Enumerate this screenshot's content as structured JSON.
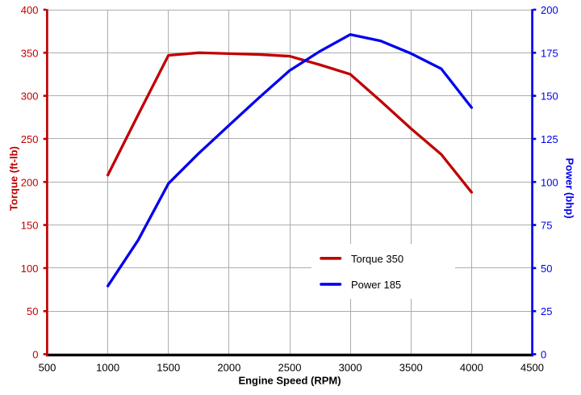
{
  "chart_data": {
    "type": "line",
    "title": "",
    "xlabel": "Engine Speed (RPM)",
    "ylabel_left": "Torque (ft-lb)",
    "ylabel_right": "Power (bhp)",
    "x": [
      1000,
      1250,
      1500,
      1750,
      2000,
      2250,
      2500,
      2750,
      3000,
      3250,
      3500,
      3750,
      4000
    ],
    "series": [
      {
        "name": "Torque 350",
        "axis": "left",
        "color": "#c00000",
        "values": [
          208,
          278,
          347,
          350,
          349,
          348,
          346,
          336,
          325,
          294,
          262,
          232,
          188
        ]
      },
      {
        "name": "Power 185",
        "axis": "right",
        "color": "#0000ee",
        "values": [
          39.6,
          66.2,
          99.1,
          116.6,
          132.9,
          149.1,
          164.7,
          175.9,
          185.6,
          181.9,
          174.6,
          165.7,
          143.2
        ]
      }
    ],
    "xlim": [
      500,
      4500
    ],
    "x_ticks": [
      500,
      1000,
      1500,
      2000,
      2500,
      3000,
      3500,
      4000,
      4500
    ],
    "ylim_left": [
      0,
      400
    ],
    "y_ticks_left": [
      0,
      50,
      100,
      150,
      200,
      250,
      300,
      350,
      400
    ],
    "ylim_right": [
      0,
      200
    ],
    "y_ticks_right": [
      0,
      25,
      50,
      75,
      100,
      125,
      150,
      175,
      200
    ],
    "grid": true,
    "legend_position": "inside-center-right",
    "colors": {
      "torque_axis": "#c00000",
      "power_axis": "#0000ee",
      "x_axis": "#000000",
      "gridline": "#adadad",
      "background": "#ffffff"
    }
  }
}
